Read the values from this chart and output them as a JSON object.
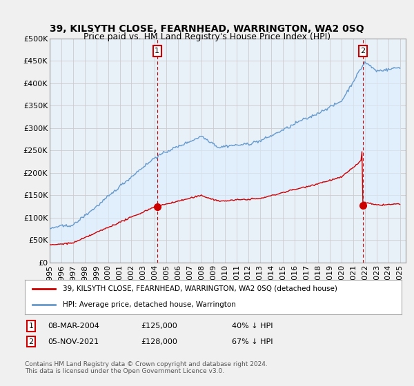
{
  "title": "39, KILSYTH CLOSE, FEARNHEAD, WARRINGTON, WA2 0SQ",
  "subtitle": "Price paid vs. HM Land Registry's House Price Index (HPI)",
  "legend_line1": "39, KILSYTH CLOSE, FEARNHEAD, WARRINGTON, WA2 0SQ (detached house)",
  "legend_line2": "HPI: Average price, detached house, Warrington",
  "annotation1_date": "08-MAR-2004",
  "annotation1_price": "£125,000",
  "annotation1_pct": "40% ↓ HPI",
  "annotation2_date": "05-NOV-2021",
  "annotation2_price": "£128,000",
  "annotation2_pct": "67% ↓ HPI",
  "footnote": "Contains HM Land Registry data © Crown copyright and database right 2024.\nThis data is licensed under the Open Government Licence v3.0.",
  "ylim": [
    0,
    500000
  ],
  "yticks": [
    0,
    50000,
    100000,
    150000,
    200000,
    250000,
    300000,
    350000,
    400000,
    450000,
    500000
  ],
  "price_paid_color": "#cc0000",
  "hpi_color": "#6699cc",
  "hpi_fill_color": "#ddeeff",
  "background_color": "#f0f0f0",
  "plot_bg_color": "#e8f0f8",
  "annotation_box_color": "#cc0000",
  "sale1_year": 2004.208,
  "sale1_price": 125000,
  "sale2_year": 2021.833,
  "sale2_price": 128000,
  "xmin": 1995,
  "xmax": 2025
}
